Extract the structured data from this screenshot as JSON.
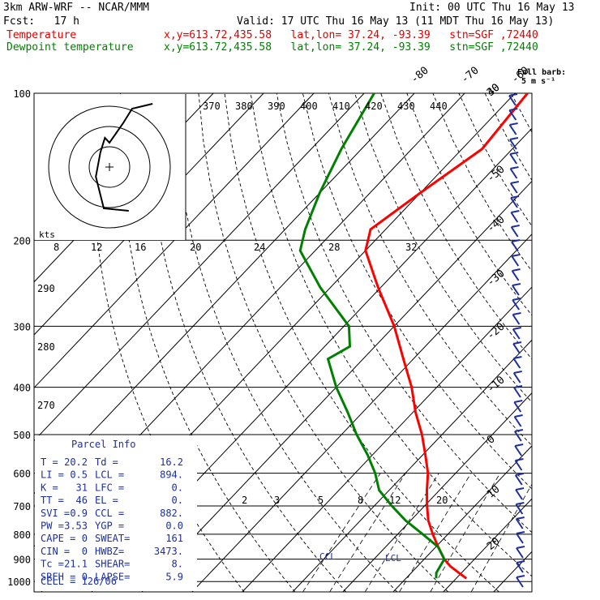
{
  "header": {
    "model": "3km ARW-WRF -- NCAR/MMM",
    "init": "Init: 00 UTC Thu 16 May 13",
    "fcst": "Fcst:   17 h",
    "valid": "Valid: 17 UTC Thu 16 May 13 (11 MDT Thu 16 May 13)",
    "temp_label": "Temperature",
    "temp_loc": "x,y=613.72,435.58   lat,lon= 37.24, -93.39   stn=SGF ,72440",
    "dew_label": "Dewpoint temperature",
    "dew_loc": "x,y=613.72,435.58   lat,lon= 37.24, -93.39   stn=SGF ,72440"
  },
  "colors": {
    "temperature": "#ff0000",
    "dewpoint": "#008000",
    "barbs": "#1d2f9c",
    "axes": "#000000"
  },
  "chart_data": {
    "type": "line",
    "plot": "skew-T log-p",
    "pressure_ticks": [
      100,
      200,
      300,
      400,
      500,
      600,
      700,
      800,
      900,
      1000
    ],
    "pressure_labels": [
      "100",
      "200",
      "300",
      "400",
      "500",
      "600",
      "700",
      "800",
      "900",
      "1000"
    ],
    "isotherm_labels": [
      "-80",
      "-70",
      "-60",
      "-50",
      "-40",
      "-30",
      "-20",
      "-10",
      "0",
      "10",
      "20",
      "30",
      "40"
    ],
    "theta_e_labels": [
      "370",
      "380",
      "390",
      "400",
      "410",
      "420",
      "430",
      "440"
    ],
    "theta_labels": [
      "290",
      "280",
      "270"
    ],
    "mixing_ratio_labels": [
      "2",
      "3",
      "5",
      "8",
      "12",
      "20"
    ],
    "mixing_ratio_top_labels": [
      "8",
      "12",
      "16",
      "20",
      "24",
      "28",
      "32"
    ],
    "wind_label": "Full barb:",
    "wind_unit": "5 m s⁻¹",
    "hodograph_units": "kts",
    "ccl_label": "CCL",
    "lcl_label": "LCL",
    "series": [
      {
        "name": "Temperature",
        "pressure": [
          985,
          960,
          930,
          900,
          850,
          800,
          750,
          700,
          650,
          600,
          550,
          500,
          450,
          400,
          350,
          300,
          250,
          210,
          190,
          160,
          130,
          100
        ],
        "temperature": [
          22.0,
          19.5,
          16.5,
          14.0,
          10.5,
          7.0,
          3.5,
          0.5,
          -2.5,
          -5.5,
          -9.5,
          -14.0,
          -19.5,
          -25.0,
          -32.0,
          -40.0,
          -50.5,
          -60.0,
          -63.0,
          -60.0,
          -56.0,
          -57.5
        ]
      },
      {
        "name": "Dewpoint temperature",
        "pressure": [
          985,
          960,
          930,
          900,
          850,
          800,
          750,
          700,
          650,
          600,
          550,
          500,
          450,
          400,
          350,
          330,
          300,
          250,
          210,
          190,
          160,
          130,
          100
        ],
        "temperature": [
          16.0,
          15.0,
          14.5,
          14.0,
          10.5,
          5.0,
          -1.0,
          -6.5,
          -12.0,
          -16.0,
          -21.0,
          -27.0,
          -33.0,
          -40.0,
          -47.0,
          -45.0,
          -49.0,
          -62.0,
          -73.0,
          -76.0,
          -80.0,
          -84.0,
          -88.0
        ]
      }
    ],
    "hodograph": {
      "x": [
        0.85,
        -0.25,
        -0.6,
        -0.4,
        -0.2,
        0.0,
        0.6,
        1.0,
        1.9
      ],
      "y": [
        -0.9,
        -0.85,
        -0.2,
        0.3,
        0.6,
        0.5,
        0.9,
        1.2,
        1.3
      ]
    }
  },
  "parcel_info": {
    "title": "Parcel Info",
    "rows": [
      [
        "T  =",
        "20.2",
        "Td =",
        "16.2"
      ],
      [
        "LI =",
        "0.5",
        "LCL =",
        "894."
      ],
      [
        "K  =",
        "31",
        "LFC =",
        "0."
      ],
      [
        "TT =",
        "46",
        "EL  =",
        "0."
      ],
      [
        "SVI =",
        "0.9",
        "CCL =",
        "882."
      ],
      [
        "PW =",
        "3.53",
        "YGP =",
        "0.0"
      ],
      [
        "CAPE =",
        "0",
        "SWEAT=",
        "161"
      ],
      [
        "CIN =",
        "0",
        "HWBZ=",
        "3473."
      ],
      [
        "Tc =",
        "21.1",
        "SHEAR=",
        "8."
      ],
      [
        "SREH =",
        "0",
        "LAPSE=",
        "5.9"
      ]
    ],
    "footer": "CELL = 126/06"
  }
}
